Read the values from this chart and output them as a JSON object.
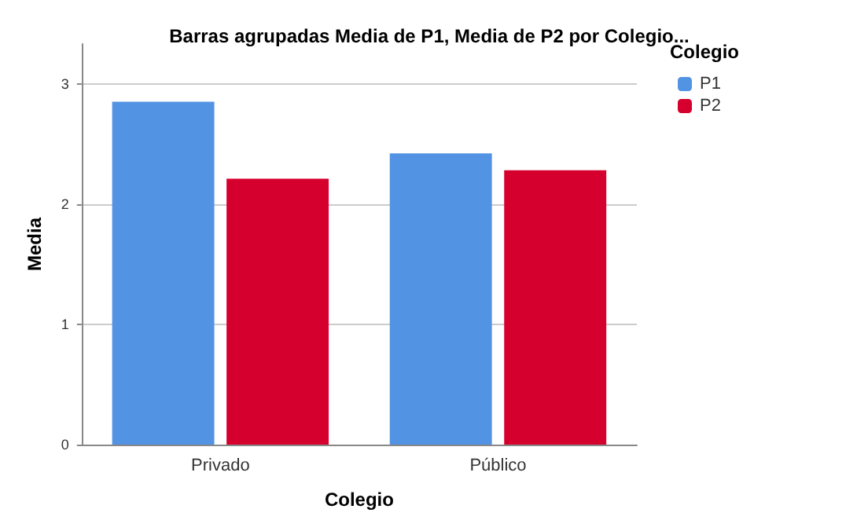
{
  "chart_data": {
    "type": "bar",
    "title": "Barras agrupadas Media de P1, Media de P2 por Colegio...",
    "xlabel": "Colegio",
    "ylabel": "Media",
    "legend_title": "Colegio",
    "categories": [
      "Privado",
      "Público"
    ],
    "series": [
      {
        "name": "P1",
        "color": "#5393e3",
        "values": [
          2.85,
          2.42
        ]
      },
      {
        "name": "P2",
        "color": "#d6002e",
        "values": [
          2.21,
          2.28
        ]
      }
    ],
    "ylim": [
      0,
      3.33
    ],
    "yticks": [
      0,
      1,
      2,
      3
    ],
    "grid": "y",
    "legend": "top right"
  }
}
